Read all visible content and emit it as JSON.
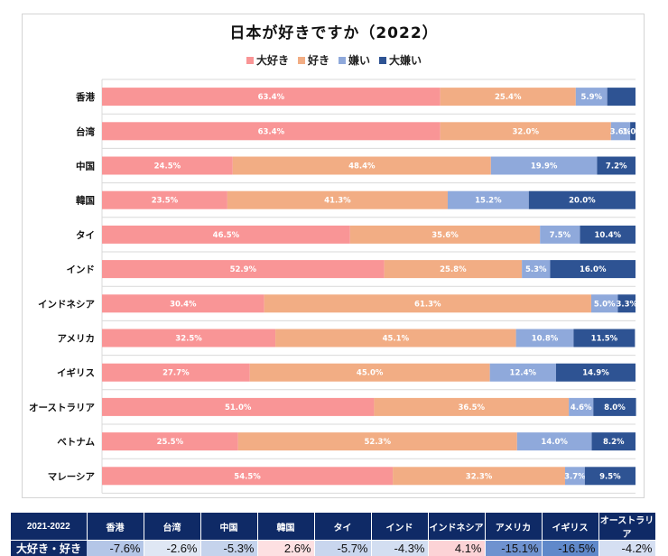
{
  "chart_data": {
    "type": "bar",
    "orientation": "horizontal",
    "stacked": "percent",
    "title": "日本が好きですか（2022）",
    "xlabel": "",
    "ylabel": "",
    "xlim": [
      0,
      100
    ],
    "grid": "horizontal category separators",
    "legend_position": "top",
    "categories": [
      "香港",
      "台湾",
      "中国",
      "韓国",
      "タイ",
      "インド",
      "インドネシア",
      "アメリカ",
      "イギリス",
      "オーストラリア",
      "ベトナム",
      "マレーシア"
    ],
    "series": [
      {
        "name": "大好き",
        "color": "#F99596",
        "values": [
          63.4,
          63.4,
          24.5,
          23.5,
          46.5,
          52.9,
          30.4,
          32.5,
          27.7,
          51.0,
          25.5,
          54.5
        ],
        "labels": [
          "63.4%",
          "63.4%",
          "24.5%",
          "23.5%",
          "46.5%",
          "52.9%",
          "30.4%",
          "32.5%",
          "27.7%",
          "51.0%",
          "25.5%",
          "54.5%"
        ]
      },
      {
        "name": "好き",
        "color": "#F2AD84",
        "values": [
          25.4,
          32.0,
          48.4,
          41.3,
          35.6,
          25.8,
          61.3,
          45.1,
          45.0,
          36.5,
          52.3,
          32.3
        ],
        "labels": [
          "25.4%",
          "32.0%",
          "48.4%",
          "41.3%",
          "35.6%",
          "25.8%",
          "61.3%",
          "45.1%",
          "45.0%",
          "36.5%",
          "52.3%",
          "32.3%"
        ]
      },
      {
        "name": "嫌い",
        "color": "#8FA9DB",
        "values": [
          5.9,
          3.6,
          19.9,
          15.2,
          7.5,
          5.3,
          5.0,
          10.8,
          12.4,
          4.6,
          14.0,
          3.7
        ],
        "labels": [
          "5.9%",
          "3.6%",
          "19.9%",
          "15.2%",
          "7.5%",
          "5.3%",
          "5.0%",
          "10.8%",
          "12.4%",
          "4.6%",
          "14.0%",
          "3.7%"
        ]
      },
      {
        "name": "大嫌い",
        "color": "#2E5393",
        "values": [
          5.3,
          1.0,
          7.2,
          20.0,
          10.4,
          16.0,
          3.3,
          11.5,
          14.9,
          8.0,
          8.2,
          9.5
        ],
        "labels": [
          "",
          "1.0%",
          "7.2%",
          "20.0%",
          "10.4%",
          "16.0%",
          "3.3%",
          "11.5%",
          "14.9%",
          "8.0%",
          "8.2%",
          "9.5%"
        ]
      }
    ]
  },
  "summary_table": {
    "corner_label": "2021-2022",
    "row_label": "大好き・好き",
    "columns": [
      "香港",
      "台湾",
      "中国",
      "韓国",
      "タイ",
      "インド",
      "インドネシア",
      "アメリカ",
      "イギリス",
      "オーストラリア"
    ],
    "values": [
      "-7.6%",
      "-2.6%",
      "-5.3%",
      "2.6%",
      "-5.7%",
      "-4.3%",
      "4.1%",
      "-15.1%",
      "-16.5%",
      "-4.2%"
    ],
    "cell_colors": [
      "#b4c6e7",
      "#dfe7f4",
      "#c5d3ec",
      "#fde0e2",
      "#c9d6ee",
      "#d3def1",
      "#fcd3d6",
      "#6f92cf",
      "#6089ca",
      "#d5dff2"
    ],
    "header_color": "#0f2a66"
  }
}
